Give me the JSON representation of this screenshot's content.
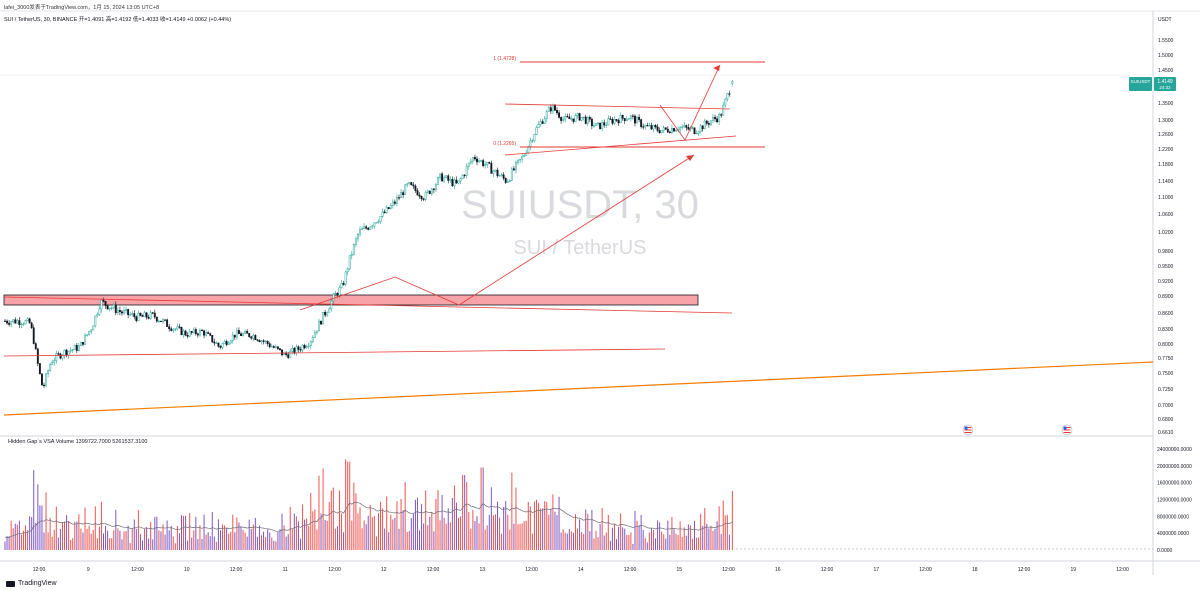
{
  "header": {
    "publish_line": "lafei_3000发表于TradingView.com，1月 15, 2024 13:05 UTC+8"
  },
  "symbol_info": {
    "line": "SUI / TetherUS, 30, BINANCE  开=1.4091  高=1.4192  低=1.4033  收=1.4149  +0.0062 (+0.44%)"
  },
  "watermark": {
    "symbol": "SUIUSDT, 30",
    "description": "SUI / TetherUS"
  },
  "price_axis": {
    "currency": "USDT",
    "ticks": [
      "1.5500",
      "1.5000",
      "1.4500",
      "1.3500",
      "1.3000",
      "1.2600",
      "1.2200",
      "1.1800",
      "1.1400",
      "1.1000",
      "1.0600",
      "1.0200",
      "0.9800",
      "0.9500",
      "0.9200",
      "0.8900",
      "0.8600",
      "0.8300",
      "0.8000",
      "0.7750",
      "0.7500",
      "0.7250",
      "0.7000",
      "0.6800",
      "0.6610"
    ],
    "last_badge": {
      "symbol": "SUIUSDT",
      "price": "1.4149",
      "countdown": "24:32"
    }
  },
  "fib": {
    "level_1": "1 (1.4728)",
    "level_0": "0 (1.2265)"
  },
  "volume": {
    "title": "Hidden Gap`s VSA Volume",
    "values_text": "1399722.7000  5261537.3100",
    "ticks": [
      "24000000.0000",
      "20000000.0000",
      "16000000.0000",
      "12000000.0000",
      "8000000.0000",
      "4000000.0000",
      "0.0000"
    ]
  },
  "time_axis": {
    "labels": [
      "12:00",
      "9",
      "12:00",
      "10",
      "12:00",
      "11",
      "12:00",
      "12",
      "12:00",
      "13",
      "12:00",
      "14",
      "12:00",
      "15",
      "12:00",
      "16",
      "12:00",
      "17",
      "12:00",
      "18",
      "12:00",
      "19",
      "12:00"
    ]
  },
  "footer": {
    "brand": "TradingView"
  },
  "colors": {
    "up": "#26a69a",
    "down": "#131722",
    "drawing": "#e53935",
    "trend": "#f57c00",
    "zone": "#f8a3a8",
    "vol_up": "#ef5350",
    "vol_down": "#7e57c2"
  },
  "chart_data": {
    "type": "candlestick",
    "title": "SUIUSDT, 30",
    "interval": "30",
    "exchange": "BINANCE",
    "last_price": 1.4149,
    "ohlc_last": {
      "open": 1.4091,
      "high": 1.4192,
      "low": 1.4033,
      "close": 1.4149,
      "change": 0.0062,
      "change_pct": 0.44
    },
    "ylim": [
      0.661,
      1.58
    ],
    "close_path": [
      {
        "x": "01-08 08:00",
        "y": 0.845
      },
      {
        "x": "01-08 10:00",
        "y": 0.84
      },
      {
        "x": "01-08 12:00",
        "y": 0.755
      },
      {
        "x": "01-08 13:00",
        "y": 0.725
      },
      {
        "x": "01-08 15:00",
        "y": 0.77
      },
      {
        "x": "01-08 18:00",
        "y": 0.785
      },
      {
        "x": "01-08 22:00",
        "y": 0.795
      },
      {
        "x": "01-09 01:00",
        "y": 0.835
      },
      {
        "x": "01-09 03:00",
        "y": 0.88
      },
      {
        "x": "01-09 08:00",
        "y": 0.862
      },
      {
        "x": "01-09 12:00",
        "y": 0.852
      },
      {
        "x": "01-09 16:00",
        "y": 0.855
      },
      {
        "x": "01-09 20:00",
        "y": 0.835
      },
      {
        "x": "01-10 00:00",
        "y": 0.82
      },
      {
        "x": "01-10 04:00",
        "y": 0.825
      },
      {
        "x": "01-10 08:00",
        "y": 0.795
      },
      {
        "x": "01-10 12:00",
        "y": 0.82
      },
      {
        "x": "01-10 16:00",
        "y": 0.818
      },
      {
        "x": "01-10 20:00",
        "y": 0.8
      },
      {
        "x": "01-11 00:00",
        "y": 0.78
      },
      {
        "x": "01-11 03:00",
        "y": 0.79
      },
      {
        "x": "01-11 06:00",
        "y": 0.805
      },
      {
        "x": "01-11 09:00",
        "y": 0.85
      },
      {
        "x": "01-11 12:00",
        "y": 0.89
      },
      {
        "x": "01-11 14:00",
        "y": 0.91
      },
      {
        "x": "01-11 16:00",
        "y": 0.97
      },
      {
        "x": "01-11 18:00",
        "y": 1.02
      },
      {
        "x": "01-11 20:00",
        "y": 1.03
      },
      {
        "x": "01-12 00:00",
        "y": 1.06
      },
      {
        "x": "01-12 03:00",
        "y": 1.09
      },
      {
        "x": "01-12 06:00",
        "y": 1.13
      },
      {
        "x": "01-12 10:00",
        "y": 1.1
      },
      {
        "x": "01-12 14:00",
        "y": 1.15
      },
      {
        "x": "01-12 18:00",
        "y": 1.13
      },
      {
        "x": "01-12 22:00",
        "y": 1.2
      },
      {
        "x": "01-13 02:00",
        "y": 1.17
      },
      {
        "x": "01-13 06:00",
        "y": 1.14
      },
      {
        "x": "01-13 10:00",
        "y": 1.2
      },
      {
        "x": "01-13 13:00",
        "y": 1.27
      },
      {
        "x": "01-13 17:00",
        "y": 1.34
      },
      {
        "x": "01-13 20:00",
        "y": 1.3
      },
      {
        "x": "01-14 00:00",
        "y": 1.31
      },
      {
        "x": "01-14 04:00",
        "y": 1.28
      },
      {
        "x": "01-14 08:00",
        "y": 1.3
      },
      {
        "x": "01-14 12:00",
        "y": 1.31
      },
      {
        "x": "01-14 16:00",
        "y": 1.28
      },
      {
        "x": "01-14 20:00",
        "y": 1.27
      },
      {
        "x": "01-15 00:00",
        "y": 1.28
      },
      {
        "x": "01-15 04:00",
        "y": 1.27
      },
      {
        "x": "01-15 08:00",
        "y": 1.3
      },
      {
        "x": "01-15 10:00",
        "y": 1.31
      },
      {
        "x": "01-15 12:00",
        "y": 1.38
      },
      {
        "x": "01-15 13:00",
        "y": 1.4149
      }
    ],
    "volume_series": {
      "name": "Hidden Gap`s VSA Volume",
      "approx_peak": 21000000,
      "last_values": [
        1399722.7,
        5261537.31
      ]
    }
  }
}
